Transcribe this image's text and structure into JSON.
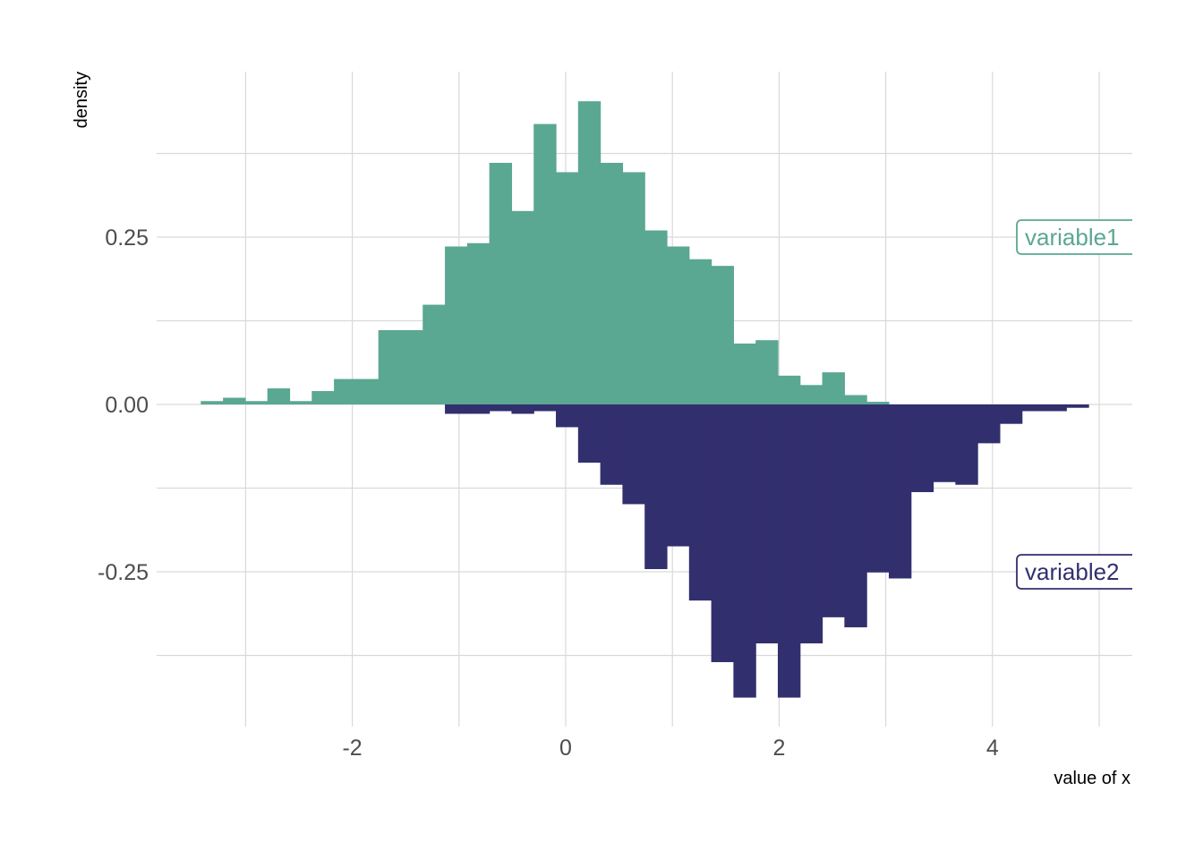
{
  "chart_data": {
    "type": "bar",
    "subtype": "mirrored-histogram",
    "xlabel": "value of x",
    "ylabel": "density",
    "xlim": [
      -3.8,
      5.3
    ],
    "ylim": [
      -0.48,
      0.5
    ],
    "bin_width": 0.208,
    "x_ticks": [
      -2,
      0,
      2,
      4
    ],
    "x_tick_labels": [
      "-2",
      "0",
      "2",
      "4"
    ],
    "y_ticks": [
      -0.25,
      0,
      0.25
    ],
    "y_tick_labels": [
      "-0.25",
      "0.00",
      "0.25"
    ],
    "grid": true,
    "series": [
      {
        "name": "variable1",
        "color": "#5aa792",
        "label_y": 0.25,
        "bin_starts": [
          -3.42,
          -3.212,
          -3.004,
          -2.796,
          -2.588,
          -2.38,
          -2.172,
          -1.964,
          -1.756,
          -1.548,
          -1.34,
          -1.132,
          -0.924,
          -0.716,
          -0.508,
          -0.3,
          -0.092,
          0.116,
          0.324,
          0.532,
          0.74,
          0.948,
          1.156,
          1.364,
          1.572,
          1.78,
          1.988,
          2.196,
          2.404,
          2.612,
          2.82
        ],
        "values": [
          0.005,
          0.01,
          0.005,
          0.024,
          0.005,
          0.02,
          0.038,
          0.038,
          0.111,
          0.111,
          0.149,
          0.236,
          0.241,
          0.361,
          0.289,
          0.419,
          0.347,
          0.453,
          0.361,
          0.347,
          0.26,
          0.236,
          0.217,
          0.207,
          0.091,
          0.096,
          0.043,
          0.029,
          0.048,
          0.014,
          0.004
        ]
      },
      {
        "name": "variable2",
        "color": "#322f6e",
        "label_y": -0.25,
        "bin_starts": [
          -1.132,
          -0.924,
          -0.716,
          -0.508,
          -0.3,
          -0.092,
          0.116,
          0.324,
          0.532,
          0.74,
          0.948,
          1.156,
          1.364,
          1.572,
          1.78,
          1.988,
          2.196,
          2.404,
          2.612,
          2.82,
          3.028,
          3.236,
          3.444,
          3.652,
          3.86,
          4.068,
          4.276,
          4.484,
          4.692
        ],
        "values": [
          -0.014,
          -0.014,
          -0.01,
          -0.014,
          -0.01,
          -0.034,
          -0.087,
          -0.12,
          -0.149,
          -0.246,
          -0.212,
          -0.293,
          -0.385,
          -0.438,
          -0.357,
          -0.438,
          -0.357,
          -0.318,
          -0.333,
          -0.251,
          -0.26,
          -0.131,
          -0.116,
          -0.12,
          -0.058,
          -0.029,
          -0.01,
          -0.01,
          -0.005
        ]
      }
    ]
  }
}
